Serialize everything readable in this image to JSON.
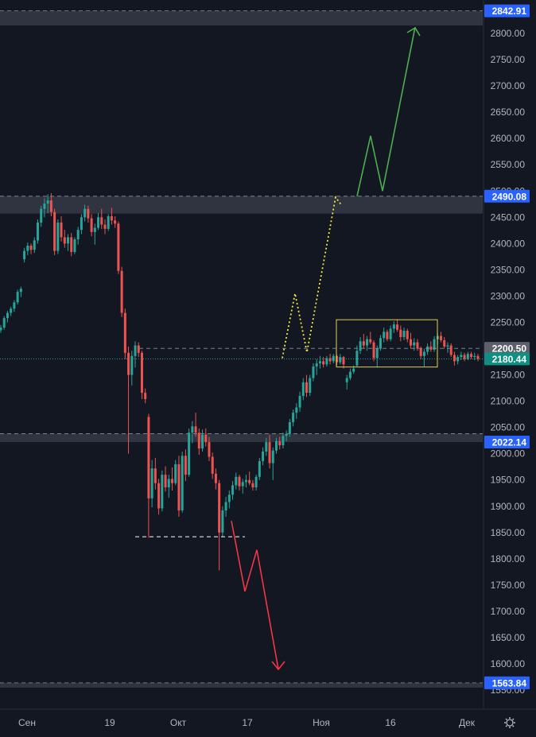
{
  "colors": {
    "background": "#131722",
    "axis_text": "#b2b5be",
    "up_candle": "#26a69a",
    "down_candle": "#ef5350",
    "zone_fill": "#363a45",
    "price_tag_blue": "#2962ff",
    "price_tag_teal": "#0f8f82",
    "price_tag_grey": "#5d606b",
    "target_green": "#4caf50",
    "target_yellow": "#f5e742",
    "target_red": "#f23645",
    "range_box": "#e0d14a"
  },
  "chart_data": {
    "type": "candlestick",
    "ylim": [
      1540,
      2860
    ],
    "y_ticks": [
      "2800.00",
      "2750.00",
      "2700.00",
      "2650.00",
      "2600.00",
      "2550.00",
      "2500.00",
      "2450.00",
      "2400.00",
      "2350.00",
      "2300.00",
      "2250.00",
      "2200.00",
      "2150.00",
      "2100.00",
      "2050.00",
      "2000.00",
      "1950.00",
      "1900.00",
      "1850.00",
      "1800.00",
      "1750.00",
      "1700.00",
      "1650.00",
      "1600.00",
      "1550.00"
    ],
    "x_ticks": [
      "Сен",
      "19",
      "Окт",
      "17",
      "Ноя",
      "16",
      "Дек"
    ],
    "price_labels": {
      "top_zone": "2842.91",
      "upper_zone": "2490.08",
      "reference": "2200.50",
      "last_price": "2180.44",
      "lower_zone": "2022.14",
      "bottom_zone": "1563.84"
    },
    "zones": [
      {
        "name": "top",
        "low": 2815,
        "high": 2842.91
      },
      {
        "name": "upper",
        "low": 2457,
        "high": 2490.08
      },
      {
        "name": "lower",
        "low": 2022.14,
        "high": 2038
      },
      {
        "name": "bottom",
        "low": 1556,
        "high": 1563.84
      }
    ],
    "range_box": {
      "low": 2165,
      "high": 2255
    },
    "dashed_levels": [
      {
        "price": 2200.5,
        "from_bar": 40
      },
      {
        "price": 2180.44,
        "from_bar": 0
      },
      {
        "price": 1842,
        "from_bar": 45,
        "to_bar": 78
      }
    ],
    "candles": [
      [
        2235,
        2245,
        2230,
        2240
      ],
      [
        2240,
        2262,
        2236,
        2258
      ],
      [
        2258,
        2272,
        2250,
        2268
      ],
      [
        2268,
        2280,
        2262,
        2276
      ],
      [
        2276,
        2292,
        2270,
        2288
      ],
      [
        2288,
        2312,
        2284,
        2308
      ],
      [
        2308,
        2318,
        2298,
        2314
      ],
      [
        2370,
        2392,
        2364,
        2386
      ],
      [
        2386,
        2402,
        2378,
        2396
      ],
      [
        2396,
        2400,
        2380,
        2388
      ],
      [
        2388,
        2412,
        2382,
        2406
      ],
      [
        2406,
        2446,
        2400,
        2440
      ],
      [
        2440,
        2472,
        2432,
        2466
      ],
      [
        2466,
        2486,
        2450,
        2476
      ],
      [
        2476,
        2494,
        2458,
        2482
      ],
      [
        2482,
        2496,
        2452,
        2460
      ],
      [
        2460,
        2466,
        2378,
        2386
      ],
      [
        2386,
        2446,
        2380,
        2440
      ],
      [
        2440,
        2452,
        2404,
        2412
      ],
      [
        2412,
        2426,
        2392,
        2400
      ],
      [
        2400,
        2418,
        2386,
        2412
      ],
      [
        2412,
        2420,
        2376,
        2384
      ],
      [
        2384,
        2412,
        2380,
        2408
      ],
      [
        2408,
        2432,
        2398,
        2426
      ],
      [
        2426,
        2456,
        2418,
        2450
      ],
      [
        2450,
        2474,
        2442,
        2466
      ],
      [
        2466,
        2472,
        2440,
        2448
      ],
      [
        2448,
        2456,
        2414,
        2422
      ],
      [
        2422,
        2438,
        2398,
        2430
      ],
      [
        2430,
        2458,
        2426,
        2450
      ],
      [
        2450,
        2466,
        2428,
        2436
      ],
      [
        2436,
        2446,
        2418,
        2428
      ],
      [
        2428,
        2456,
        2424,
        2452
      ],
      [
        2452,
        2468,
        2436,
        2444
      ],
      [
        2444,
        2452,
        2430,
        2438
      ],
      [
        2438,
        2442,
        2342,
        2348
      ],
      [
        2348,
        2356,
        2260,
        2268
      ],
      [
        2268,
        2276,
        2180,
        2192
      ],
      [
        2192,
        2204,
        2000,
        2150
      ],
      [
        2150,
        2196,
        2130,
        2186
      ],
      [
        2186,
        2214,
        2164,
        2206
      ],
      [
        2206,
        2212,
        2184,
        2192
      ],
      [
        2192,
        2196,
        2104,
        2116
      ],
      [
        2116,
        2124,
        2096,
        2104
      ],
      [
        2070,
        2076,
        1840,
        1915
      ],
      [
        1915,
        1988,
        1898,
        1972
      ],
      [
        1972,
        1992,
        1932,
        1944
      ],
      [
        1944,
        1952,
        1884,
        1896
      ],
      [
        1896,
        1968,
        1890,
        1960
      ],
      [
        1960,
        1976,
        1928,
        1936
      ],
      [
        1936,
        1960,
        1916,
        1952
      ],
      [
        1952,
        1974,
        1930,
        1944
      ],
      [
        1944,
        1988,
        1940,
        1980
      ],
      [
        1980,
        1996,
        1880,
        1892
      ],
      [
        1892,
        2004,
        1888,
        1996
      ],
      [
        1996,
        2008,
        1948,
        1960
      ],
      [
        1960,
        2048,
        1956,
        2040
      ],
      [
        2040,
        2062,
        2020,
        2052
      ],
      [
        2052,
        2078,
        2032,
        2040
      ],
      [
        2040,
        2048,
        1998,
        2010
      ],
      [
        2010,
        2046,
        2004,
        2036
      ],
      [
        2036,
        2048,
        2014,
        2022
      ],
      [
        2022,
        2032,
        1986,
        1994
      ],
      [
        1994,
        2002,
        1952,
        1962
      ],
      [
        1962,
        1972,
        1932,
        1944
      ],
      [
        1944,
        1950,
        1778,
        1850
      ],
      [
        1850,
        1900,
        1842,
        1892
      ],
      [
        1892,
        1918,
        1880,
        1908
      ],
      [
        1908,
        1930,
        1896,
        1922
      ],
      [
        1922,
        1948,
        1912,
        1940
      ],
      [
        1940,
        1964,
        1932,
        1956
      ],
      [
        1956,
        1960,
        1930,
        1938
      ],
      [
        1938,
        1952,
        1924,
        1946
      ],
      [
        1946,
        1960,
        1936,
        1950
      ],
      [
        1950,
        1966,
        1940,
        1944
      ],
      [
        1944,
        1950,
        1930,
        1936
      ],
      [
        1936,
        1960,
        1930,
        1956
      ],
      [
        1956,
        1992,
        1950,
        1986
      ],
      [
        1986,
        2012,
        1978,
        2004
      ],
      [
        2004,
        2030,
        1996,
        2022
      ],
      [
        2022,
        2036,
        1972,
        1982
      ],
      [
        1982,
        2012,
        1950,
        2006
      ],
      [
        2006,
        2030,
        2000,
        2024
      ],
      [
        2024,
        2032,
        2008,
        2016
      ],
      [
        2016,
        2040,
        2010,
        2034
      ],
      [
        2034,
        2044,
        2024,
        2038
      ],
      [
        2038,
        2066,
        2032,
        2060
      ],
      [
        2060,
        2084,
        2052,
        2078
      ],
      [
        2078,
        2096,
        2066,
        2088
      ],
      [
        2088,
        2118,
        2080,
        2110
      ],
      [
        2110,
        2144,
        2102,
        2136
      ],
      [
        2136,
        2150,
        2108,
        2116
      ],
      [
        2116,
        2150,
        2110,
        2144
      ],
      [
        2144,
        2172,
        2138,
        2166
      ],
      [
        2166,
        2180,
        2150,
        2172
      ],
      [
        2172,
        2186,
        2162,
        2176
      ],
      [
        2176,
        2184,
        2164,
        2170
      ],
      [
        2170,
        2186,
        2166,
        2182
      ],
      [
        2182,
        2190,
        2170,
        2176
      ],
      [
        2176,
        2190,
        2172,
        2186
      ],
      [
        2186,
        2188,
        2168,
        2174
      ],
      [
        2174,
        2190,
        2170,
        2184
      ],
      [
        2184,
        2186,
        2162,
        2170
      ],
      [
        2136,
        2150,
        2122,
        2144
      ],
      [
        2144,
        2162,
        2140,
        2156
      ],
      [
        2156,
        2168,
        2152,
        2162
      ],
      [
        2168,
        2206,
        2166,
        2196
      ],
      [
        2196,
        2222,
        2190,
        2214
      ],
      [
        2214,
        2228,
        2200,
        2206
      ],
      [
        2206,
        2224,
        2196,
        2218
      ],
      [
        2218,
        2232,
        2208,
        2212
      ],
      [
        2212,
        2216,
        2176,
        2182
      ],
      [
        2182,
        2206,
        2164,
        2200
      ],
      [
        2200,
        2226,
        2196,
        2220
      ],
      [
        2220,
        2240,
        2212,
        2232
      ],
      [
        2232,
        2236,
        2214,
        2218
      ],
      [
        2218,
        2244,
        2214,
        2238
      ],
      [
        2238,
        2252,
        2230,
        2246
      ],
      [
        2246,
        2256,
        2232,
        2236
      ],
      [
        2236,
        2244,
        2214,
        2222
      ],
      [
        2222,
        2240,
        2216,
        2234
      ],
      [
        2234,
        2238,
        2212,
        2218
      ],
      [
        2218,
        2230,
        2200,
        2206
      ],
      [
        2206,
        2220,
        2196,
        2212
      ],
      [
        2212,
        2218,
        2196,
        2200
      ],
      [
        2200,
        2204,
        2180,
        2186
      ],
      [
        2186,
        2200,
        2166,
        2194
      ],
      [
        2194,
        2210,
        2188,
        2204
      ],
      [
        2204,
        2214,
        2194,
        2198
      ],
      [
        2198,
        2224,
        2194,
        2218
      ],
      [
        2218,
        2230,
        2208,
        2224
      ],
      [
        2224,
        2232,
        2212,
        2216
      ],
      [
        2216,
        2222,
        2200,
        2204
      ],
      [
        2204,
        2212,
        2192,
        2206
      ],
      [
        2206,
        2210,
        2184,
        2188
      ],
      [
        2188,
        2194,
        2168,
        2176
      ],
      [
        2176,
        2188,
        2170,
        2184
      ],
      [
        2184,
        2194,
        2178,
        2188
      ],
      [
        2188,
        2192,
        2176,
        2180
      ],
      [
        2180,
        2194,
        2178,
        2190
      ],
      [
        2190,
        2194,
        2180,
        2184
      ],
      [
        2184,
        2192,
        2178,
        2186
      ],
      [
        2186,
        2190,
        2176,
        2180
      ]
    ],
    "projections": {
      "green": [
        [
          449,
          2490
        ],
        [
          466,
          2605
        ],
        [
          481,
          2500
        ],
        [
          522,
          2812
        ]
      ],
      "yellow": [
        [
          355,
          2182
        ],
        [
          371,
          2305
        ],
        [
          386,
          2193
        ],
        [
          422,
          2488
        ],
        [
          430,
          2472
        ]
      ],
      "red": [
        [
          291,
          1872
        ],
        [
          308,
          1738
        ],
        [
          323,
          1817
        ],
        [
          350,
          1590
        ]
      ]
    }
  }
}
